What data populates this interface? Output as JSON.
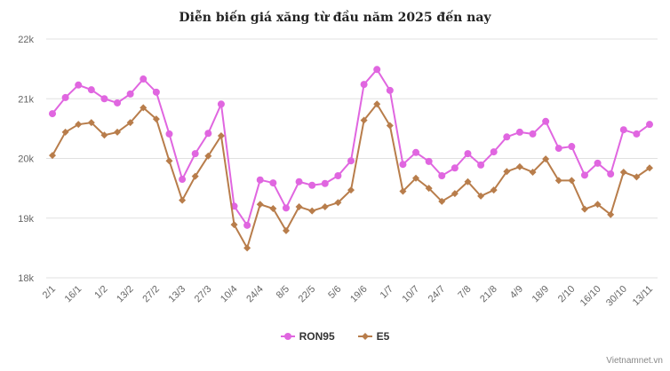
{
  "chart_data": {
    "type": "line",
    "title": "Diễn biến giá xăng từ đầu năm 2025 đến nay",
    "xlabel": "",
    "ylabel": "",
    "ylim": [
      18000,
      22000
    ],
    "yticks": [
      "18k",
      "19k",
      "20k",
      "21k",
      "22k"
    ],
    "ytick_values": [
      18000,
      19000,
      20000,
      21000,
      22000
    ],
    "xtick_labels": [
      "2/1",
      "16/1",
      "1/2",
      "13/2",
      "27/2",
      "13/3",
      "27/3",
      "10/4",
      "24/4",
      "8/5",
      "22/5",
      "5/6",
      "19/6",
      "1/7",
      "10/7",
      "24/7",
      "7/8",
      "21/8",
      "4/9",
      "18/9",
      "2/10",
      "16/10",
      "30/10",
      "13/11"
    ],
    "xtick_every": 2,
    "grid": true,
    "legend_position": "bottom",
    "series": [
      {
        "name": "RON95",
        "color": "#e066e0",
        "marker": "circle",
        "values": [
          20750,
          21020,
          21230,
          21150,
          21000,
          20930,
          21080,
          21330,
          21110,
          20410,
          19650,
          20080,
          20420,
          20910,
          19200,
          18880,
          19640,
          19590,
          19170,
          19610,
          19550,
          19580,
          19710,
          19960,
          21240,
          21490,
          21140,
          19900,
          20100,
          19950,
          19710,
          19840,
          20080,
          19890,
          20110,
          20360,
          20440,
          20410,
          20620,
          20170,
          20200,
          19720,
          19920,
          19740,
          20480,
          20410,
          20570
        ]
      },
      {
        "name": "E5",
        "color": "#b87d4b",
        "marker": "diamond",
        "values": [
          20050,
          20440,
          20570,
          20600,
          20390,
          20440,
          20600,
          20850,
          20660,
          19960,
          19300,
          19700,
          20040,
          20380,
          18890,
          18500,
          19230,
          19160,
          18790,
          19190,
          19120,
          19190,
          19260,
          19470,
          20640,
          20910,
          20550,
          19450,
          19670,
          19500,
          19280,
          19410,
          19610,
          19370,
          19470,
          19780,
          19860,
          19770,
          19990,
          19630,
          19630,
          19150,
          19230,
          19060,
          19770,
          19690,
          19840
        ]
      }
    ]
  },
  "credit": "Vietnamnet.vn"
}
